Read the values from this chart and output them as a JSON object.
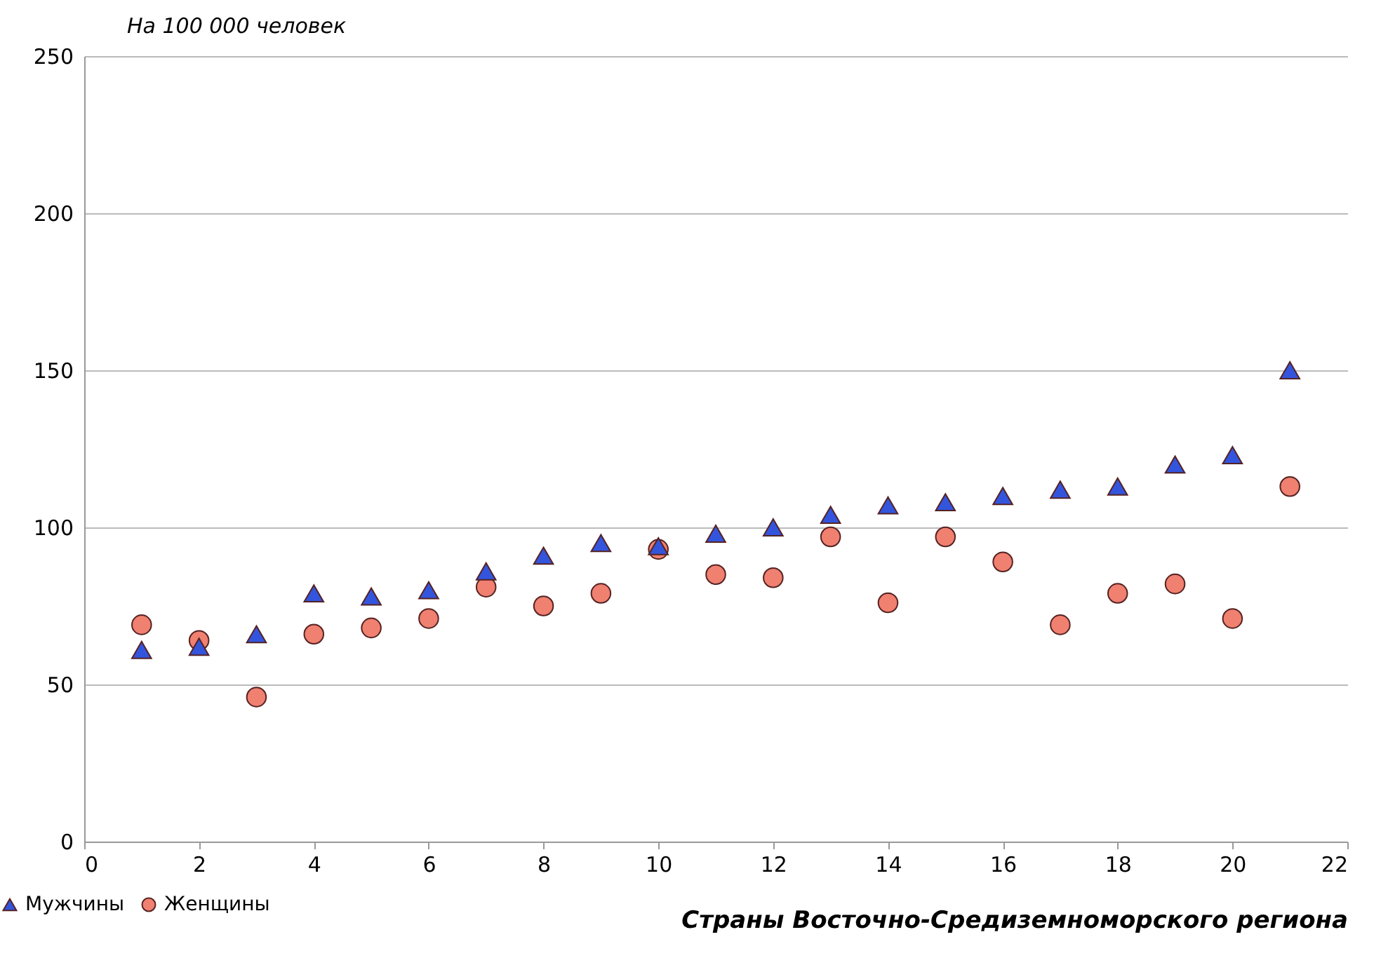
{
  "chart_data": {
    "type": "scatter",
    "ylabel": "На 100 000 человек",
    "xlabel": "Страны Восточно-Средиземноморского региона",
    "x": [
      1,
      2,
      3,
      4,
      5,
      6,
      7,
      8,
      9,
      10,
      11,
      12,
      13,
      14,
      15,
      16,
      17,
      18,
      19,
      20,
      21
    ],
    "series": [
      {
        "name": "Мужчины",
        "color": "#3355dd",
        "marker": "triangle",
        "values": [
          61,
          62,
          66,
          79,
          78,
          80,
          86,
          91,
          95,
          94,
          98,
          100,
          104,
          107,
          108,
          110,
          112,
          113,
          120,
          123,
          150
        ]
      },
      {
        "name": "Женщины",
        "color": "#f08070",
        "marker": "circle",
        "values": [
          69,
          64,
          46,
          66,
          68,
          71,
          81,
          75,
          79,
          93,
          85,
          84,
          97,
          76,
          97,
          89,
          69,
          79,
          82,
          71,
          113
        ]
      }
    ],
    "xlim": [
      0,
      22
    ],
    "xticks": [
      0,
      2,
      4,
      6,
      8,
      10,
      12,
      14,
      16,
      18,
      20,
      22
    ],
    "ylim": [
      0,
      250
    ],
    "yticks": [
      0,
      50,
      100,
      150,
      200,
      250
    ],
    "grid": "y",
    "legend": "bottom left"
  }
}
